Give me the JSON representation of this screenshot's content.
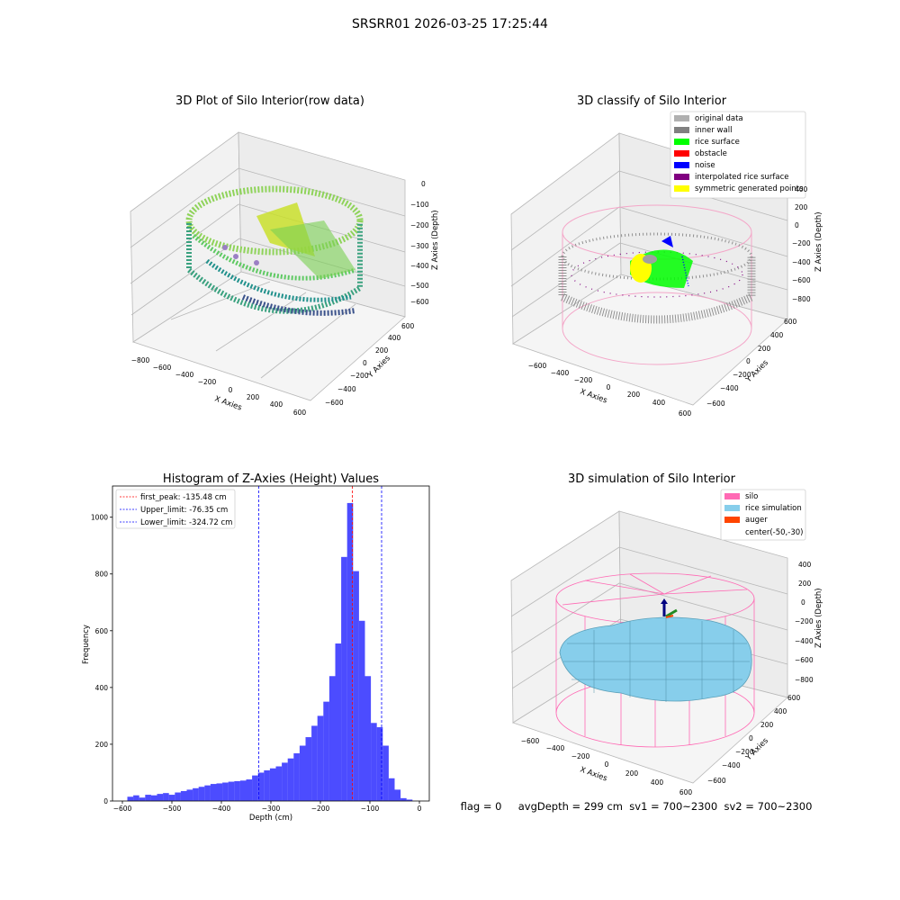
{
  "figure": {
    "suptitle": "SRSRR01 2026-03-25 17:25:44",
    "footer": "flag = 0     avgDepth = 299 cm  sv1 = 700~2300  sv2 = 700~2300"
  },
  "panels": {
    "raw": {
      "title": "3D Plot of Silo Interior(row data)",
      "xlabel": "X Axies",
      "ylabel": "Y Axies",
      "zlabel": "Z Axies (Depth)",
      "xticks": [
        "−800",
        "−600",
        "−400",
        "−200",
        "0",
        "200",
        "400",
        "600"
      ],
      "yticks": [
        "600",
        "400",
        "200",
        "0",
        "−200",
        "−400",
        "−600"
      ],
      "zticks": [
        "0",
        "−100",
        "−200",
        "−300",
        "−400",
        "−500",
        "−600"
      ]
    },
    "classify": {
      "title": "3D classify of Silo Interior",
      "xlabel": "X Axies",
      "ylabel": "Y Axies",
      "zlabel": "Z Axies (Depth)",
      "xticks": [
        "−600",
        "−400",
        "−200",
        "0",
        "200",
        "400",
        "600"
      ],
      "yticks": [
        "600",
        "400",
        "200",
        "0",
        "−200",
        "−400",
        "−600"
      ],
      "zticks": [
        "400",
        "200",
        "0",
        "−200",
        "−400",
        "−600",
        "−800"
      ],
      "legend": [
        {
          "label": "original data",
          "color": "#b0b0b0"
        },
        {
          "label": "inner wall",
          "color": "#808080"
        },
        {
          "label": "rice surface",
          "color": "#00ff00"
        },
        {
          "label": "obstacle",
          "color": "#ff0000"
        },
        {
          "label": "noise",
          "color": "#0000ff"
        },
        {
          "label": "interpolated rice surface",
          "color": "#800080"
        },
        {
          "label": "symmetric generated points",
          "color": "#ffff00"
        }
      ]
    },
    "simulation": {
      "title": "3D simulation of Silo Interior",
      "xlabel": "X Axies",
      "ylabel": "Y Axies",
      "zlabel": "Z Axies (Depth)",
      "xticks": [
        "−600",
        "−400",
        "−200",
        "0",
        "200",
        "400",
        "600"
      ],
      "yticks": [
        "600",
        "400",
        "200",
        "0",
        "−200",
        "−400",
        "−600"
      ],
      "zticks": [
        "400",
        "200",
        "0",
        "−200",
        "−400",
        "−600",
        "−800"
      ],
      "legend": [
        {
          "label": "silo",
          "color": "#ff69b4"
        },
        {
          "label": "rice simulation",
          "color": "#87ceeb"
        },
        {
          "label": "auger",
          "color": "#ff4500"
        },
        {
          "label": "center(-50,-30)",
          "color": ""
        }
      ]
    }
  },
  "chart_data": {
    "type": "bar",
    "title": "Histogram of Z-Axies (Height) Values",
    "xlabel": "Depth (cm)",
    "ylabel": "Frequency",
    "xlim": [
      -620,
      20
    ],
    "ylim": [
      0,
      1110
    ],
    "xticks": [
      -600,
      -500,
      -400,
      -300,
      -200,
      -100,
      0
    ],
    "yticks": [
      0,
      200,
      400,
      600,
      800,
      1000
    ],
    "bar_color": "#0000ff",
    "bin_width": 12,
    "bin_start": -590,
    "values": [
      15,
      20,
      12,
      22,
      20,
      25,
      28,
      22,
      30,
      35,
      40,
      45,
      50,
      55,
      60,
      62,
      65,
      68,
      70,
      72,
      76,
      90,
      100,
      108,
      115,
      122,
      135,
      150,
      168,
      195,
      225,
      265,
      300,
      350,
      440,
      555,
      860,
      1050,
      810,
      635,
      440,
      275,
      260,
      195,
      80,
      40,
      10,
      5
    ],
    "lines": [
      {
        "label": "first_peak: -135.48 cm",
        "x": -135.48,
        "color": "#ff0000"
      },
      {
        "label": "Upper_limit: -76.35 cm",
        "x": -76.35,
        "color": "#0000ff"
      },
      {
        "label": "Lower_limit: -324.72 cm",
        "x": -324.72,
        "color": "#0000ff"
      }
    ]
  }
}
